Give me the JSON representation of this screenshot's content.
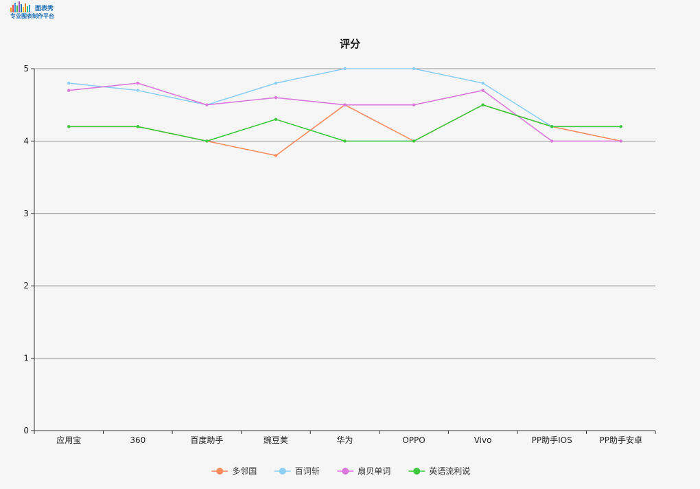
{
  "logo": {
    "brand": "图表秀",
    "tagline": "专业图表制作平台"
  },
  "chart_data": {
    "type": "line",
    "title": "评分",
    "xlabel": "",
    "ylabel": "",
    "categories": [
      "应用宝",
      "360",
      "百度助手",
      "豌豆荚",
      "华为",
      "OPPO",
      "Vivo",
      "PP助手IOS",
      "PP助手安卓"
    ],
    "ylim": [
      0,
      5
    ],
    "yticks": [
      0,
      1,
      2,
      3,
      4,
      5
    ],
    "grid": true,
    "legend_position": "bottom",
    "series": [
      {
        "name": "多邻国",
        "color": "#f98b5e",
        "values": [
          4.2,
          4.2,
          4.0,
          3.8,
          4.5,
          4.0,
          4.5,
          4.2,
          4.0
        ]
      },
      {
        "name": "百词斩",
        "color": "#8ecff5",
        "values": [
          4.8,
          4.7,
          4.5,
          4.8,
          5.0,
          5.0,
          4.8,
          4.2,
          4.2
        ]
      },
      {
        "name": "扇贝单词",
        "color": "#da78dc",
        "values": [
          4.7,
          4.8,
          4.5,
          4.6,
          4.5,
          4.5,
          4.7,
          4.0,
          4.0
        ]
      },
      {
        "name": "英语流利说",
        "color": "#3cc93c",
        "values": [
          4.2,
          4.2,
          4.0,
          4.3,
          4.0,
          4.0,
          4.5,
          4.2,
          4.2
        ]
      }
    ]
  }
}
